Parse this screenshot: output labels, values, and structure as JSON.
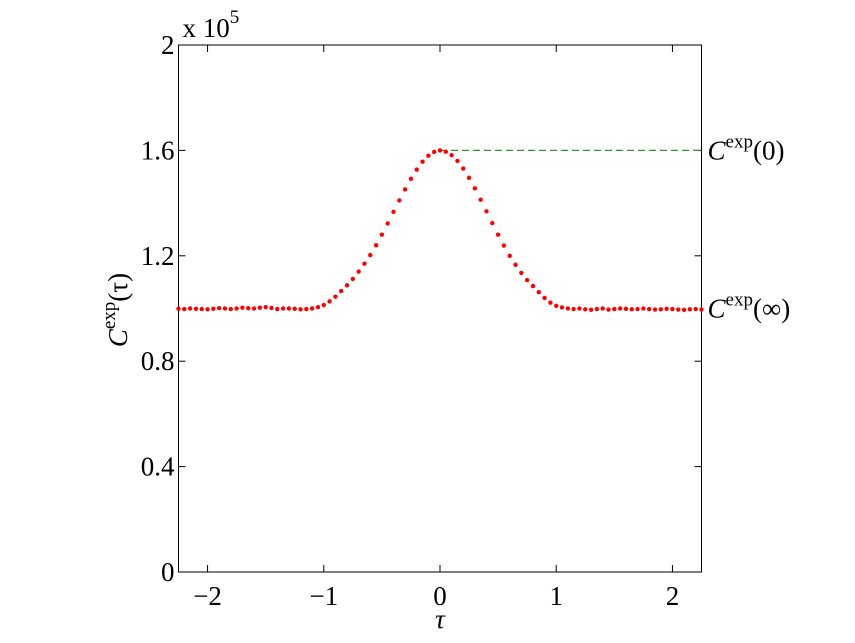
{
  "chart_data": {
    "type": "scatter",
    "xlabel": "τ",
    "ylabel": {
      "base": "C",
      "sup": "exp",
      "arg": "(τ)"
    },
    "y_multiplier": {
      "base": "x 10",
      "exponent": "5"
    },
    "xlim": [
      -2.25,
      2.25
    ],
    "xticks": [
      -2,
      -1,
      0,
      1,
      2
    ],
    "ylim": [
      0,
      2
    ],
    "yticks": [
      0,
      0.4,
      0.8,
      1.2,
      1.6,
      2
    ],
    "x": [
      -2.25,
      -2.2,
      -2.15,
      -2.1,
      -2.05,
      -2,
      -1.95,
      -1.9,
      -1.85,
      -1.8,
      -1.75,
      -1.7,
      -1.65,
      -1.6,
      -1.55,
      -1.5,
      -1.45,
      -1.4,
      -1.35,
      -1.3,
      -1.25,
      -1.2,
      -1.15,
      -1.1,
      -1.05,
      -1,
      -0.95,
      -0.9,
      -0.85,
      -0.8,
      -0.75,
      -0.7,
      -0.65,
      -0.6,
      -0.55,
      -0.5,
      -0.45,
      -0.4,
      -0.35,
      -0.3,
      -0.25,
      -0.2,
      -0.15,
      -0.1,
      -0.05,
      0,
      0.05,
      0.1,
      0.15,
      0.2,
      0.25,
      0.3,
      0.35,
      0.4,
      0.45,
      0.5,
      0.55,
      0.6,
      0.65,
      0.7,
      0.75,
      0.8,
      0.85,
      0.9,
      0.95,
      1,
      1.05,
      1.1,
      1.15,
      1.2,
      1.25,
      1.3,
      1.35,
      1.4,
      1.45,
      1.5,
      1.55,
      1.6,
      1.65,
      1.7,
      1.75,
      1.8,
      1.85,
      1.9,
      1.95,
      2,
      2.05,
      2.1,
      2.15,
      2.2,
      2.25
    ],
    "series": [
      {
        "color": "#ff0000",
        "values": [
          0.999,
          0.998,
          1.0,
          0.999,
          0.998,
          0.997,
          0.999,
          1.001,
          1.0,
          0.998,
          1.0,
          1.003,
          1.001,
          1.0,
          1.003,
          1.005,
          1.002,
          0.998,
          1.0,
          1.0,
          0.999,
          0.997,
          0.998,
          1.0,
          1.005,
          1.013,
          1.027,
          1.045,
          1.066,
          1.088,
          1.112,
          1.14,
          1.17,
          1.203,
          1.24,
          1.28,
          1.323,
          1.367,
          1.41,
          1.452,
          1.492,
          1.527,
          1.557,
          1.58,
          1.594,
          1.6,
          1.595,
          1.582,
          1.56,
          1.531,
          1.496,
          1.456,
          1.413,
          1.369,
          1.324,
          1.28,
          1.239,
          1.2,
          1.166,
          1.135,
          1.108,
          1.085,
          1.062,
          1.04,
          1.022,
          1.01,
          1.004,
          1.0,
          0.998,
          1.0,
          0.997,
          0.995,
          0.998,
          1.0,
          0.996,
          0.998,
          1.0,
          0.999,
          0.997,
          0.998,
          1.0,
          0.998,
          0.996,
          0.997,
          0.999,
          0.998,
          0.996,
          0.995,
          0.997,
          0.998,
          0.996
        ]
      }
    ],
    "annotations": [
      {
        "y": 1.6,
        "base": "C",
        "sup": "exp",
        "arg": "(0)",
        "line": true,
        "line_from_x": 0,
        "color": "#2e9a2e"
      },
      {
        "y": 1.0,
        "base": "C",
        "sup": "exp",
        "arg": "(∞)",
        "line": false
      }
    ]
  }
}
